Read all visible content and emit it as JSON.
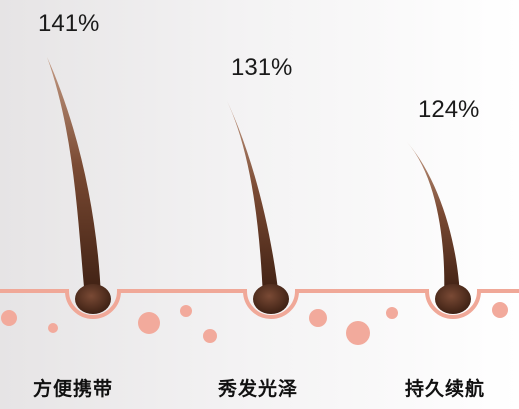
{
  "items": [
    {
      "percent": "141%",
      "label": "方便携带"
    },
    {
      "percent": "131%",
      "label": "秀发光泽"
    },
    {
      "percent": "124%",
      "label": "持久续航"
    }
  ],
  "colors": {
    "skin_line": "#f0a898",
    "dots": "#f2aa9c",
    "hair_dark": "#3d1f12",
    "hair_light": "#c49b84",
    "follicle": "#5a3322",
    "background_left": "#e6e4e5",
    "background_right": "#ffffff",
    "text": "#1a1a1a"
  }
}
